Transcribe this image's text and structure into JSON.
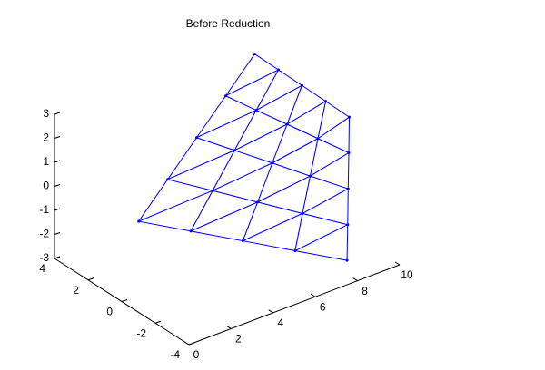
{
  "chart_data": {
    "type": "mesh3d",
    "title": "Before Reduction",
    "x": [
      [
        2,
        3.88,
        5.75,
        7.63,
        9.5
      ],
      [
        3.58,
        5.09,
        6.6,
        8.11,
        9.63
      ],
      [
        5.15,
        6.3,
        7.45,
        8.6,
        9.75
      ],
      [
        6.73,
        7.51,
        8.3,
        9.09,
        9.88
      ],
      [
        8.3,
        8.73,
        9.15,
        9.58,
        10
      ]
    ],
    "y": [
      [
        1.5,
        2.13,
        2.75,
        3.38,
        4
      ],
      [
        0.38,
        0.97,
        1.56,
        2.16,
        2.75
      ],
      [
        -0.75,
        -0.19,
        0.38,
        0.94,
        1.5
      ],
      [
        -1.88,
        -1.34,
        -0.81,
        -0.28,
        0.25
      ],
      [
        -3,
        -2.5,
        -2,
        -1.5,
        -1
      ]
    ],
    "z": [
      [
        -1,
        -0.16,
        0.68,
        1.51,
        2.35
      ],
      [
        -1.43,
        -0.51,
        0.4,
        1.3,
        2.21
      ],
      [
        -1.85,
        -0.87,
        0.12,
        1.1,
        2.08
      ],
      [
        -2.28,
        -1.23,
        -0.17,
        0.89,
        1.94
      ],
      [
        -2.7,
        -1.58,
        -0.45,
        0.68,
        1.8
      ]
    ],
    "xlim": [
      0,
      10
    ],
    "ylim": [
      -4,
      4
    ],
    "zlim": [
      -3,
      3
    ],
    "xticks": [
      0,
      2,
      4,
      6,
      8,
      10
    ],
    "yticks": [
      -4,
      -2,
      0,
      2,
      4
    ],
    "zticks": [
      -3,
      -2,
      -1,
      0,
      1,
      2,
      3
    ],
    "color": "#0000ff"
  }
}
